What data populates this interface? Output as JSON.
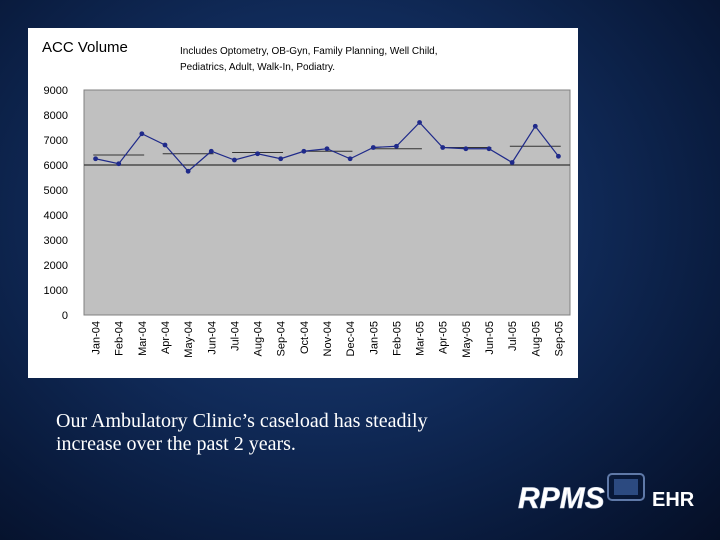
{
  "chart_data": {
    "type": "line",
    "title": "ACC Volume",
    "note_lines": [
      "Includes Optometry, OB-Gyn, Family Planning, Well Child,",
      "Pediatrics, Adult, Walk-In, Podiatry."
    ],
    "categories": [
      "Jan-04",
      "Feb-04",
      "Mar-04",
      "Apr-04",
      "May-04",
      "Jun-04",
      "Jul-04",
      "Aug-04",
      "Sep-04",
      "Oct-04",
      "Nov-04",
      "Dec-04",
      "Jan-05",
      "Feb-05",
      "Mar-05",
      "Apr-05",
      "May-05",
      "Jun-05",
      "Jul-05",
      "Aug-05",
      "Sep-05"
    ],
    "series": [
      {
        "values": [
          6250,
          6050,
          7250,
          6800,
          5750,
          6550,
          6200,
          6450,
          6250,
          6550,
          6650,
          6250,
          6700,
          6750,
          7700,
          6700,
          6650,
          6650,
          6100,
          7550,
          6350
        ]
      }
    ],
    "period_averages": [
      {
        "start": "Jan-04",
        "end": "Mar-04",
        "value": 6400
      },
      {
        "start": "Apr-04",
        "end": "Jun-04",
        "value": 6450
      },
      {
        "start": "Jul-04",
        "end": "Sep-04",
        "value": 6500
      },
      {
        "start": "Oct-04",
        "end": "Dec-04",
        "value": 6550
      },
      {
        "start": "Jan-05",
        "end": "Mar-05",
        "value": 6650
      },
      {
        "start": "Apr-05",
        "end": "Jun-05",
        "value": 6700
      },
      {
        "start": "Jul-05",
        "end": "Sep-05",
        "value": 6750
      }
    ],
    "reference_line": 6000,
    "ylim": [
      0,
      9000
    ],
    "yticks": [
      0,
      1000,
      2000,
      3000,
      4000,
      5000,
      6000,
      7000,
      8000,
      9000
    ],
    "legend": "none",
    "colors": {
      "line": "#1f2a8a",
      "marker": "#1f2a8a",
      "trend": "#333333",
      "reference": "#333333",
      "plot_bg": "#c0c0c0"
    }
  },
  "caption": "Our Ambulatory Clinic’s caseload has steadily increase over the past 2 years.",
  "logo": {
    "text_main": "RPMS",
    "text_side": "EHR"
  }
}
